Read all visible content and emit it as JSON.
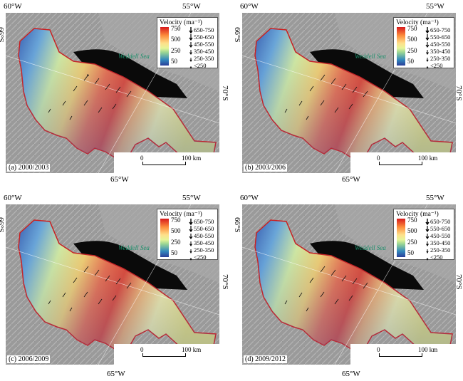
{
  "panels": [
    {
      "label": "(a) 2000/2003"
    },
    {
      "label": "(b) 2003/2006"
    },
    {
      "label": "(c) 2006/2009"
    },
    {
      "label": "(d) 2009/2012"
    }
  ],
  "coords": {
    "lon_left": "60°W",
    "lon_right": "55°W",
    "lon_bottom": "65°W",
    "lat_left": "66°S",
    "lat_right": "70°S"
  },
  "sea_label": "Weddell Sea",
  "legend": {
    "title": "Velocity (ma⁻¹)",
    "colorbar_ticks": [
      "750",
      "500",
      "250",
      "50"
    ],
    "colorbar_colors": [
      "#d7191c",
      "#fd8d3c",
      "#fee08b",
      "#99d594",
      "#3288bd",
      "#2b3f99"
    ],
    "arrow_classes": [
      "650-750",
      "550-650",
      "450-550",
      "350-450",
      "250-350",
      "<250"
    ]
  },
  "scale_bar": {
    "start": "0",
    "end": "100 km"
  },
  "colors": {
    "boundary": "#cc1f1f",
    "open_water": "#0a0a0a",
    "background_ice": "#8c8c8c"
  }
}
